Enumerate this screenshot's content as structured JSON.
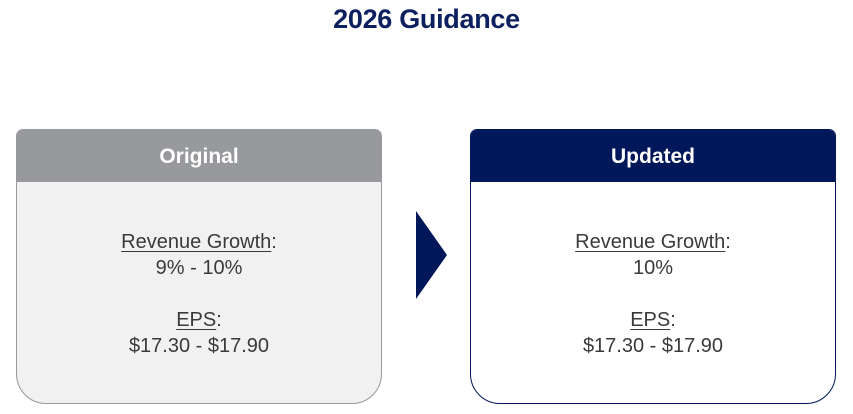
{
  "title": "2026 Guidance",
  "cards": [
    {
      "header": "Original",
      "items": [
        {
          "label": "Revenue Growth",
          "suffix": ":",
          "value": "9% - 10%"
        },
        {
          "label": "EPS",
          "suffix": ":",
          "value": "$17.30 - $17.90"
        }
      ]
    },
    {
      "header": "Updated",
      "items": [
        {
          "label": "Revenue Growth",
          "suffix": ":",
          "value": "10%"
        },
        {
          "label": "EPS",
          "suffix": ":",
          "value": "$17.30 - $17.90"
        }
      ]
    }
  ]
}
